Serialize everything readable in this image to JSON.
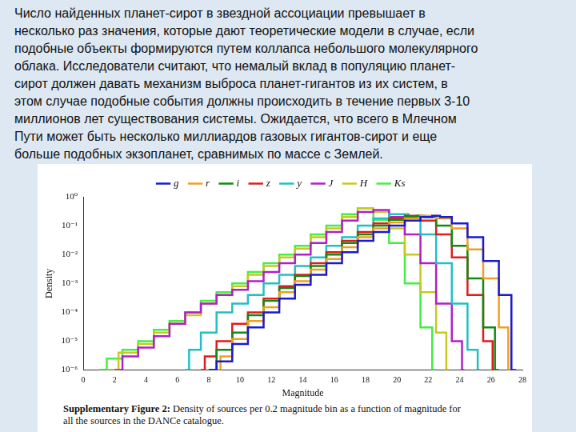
{
  "slide_text": [
    "Число найденных планет-сирот в звездной ассоциации превышает в",
    "несколько раз значения, которые дают теоретические модели в случае, если",
    "подобные объекты формируются путем коллапса небольшого молекулярного",
    "облака. Исследователи считают, что немалый вклад в популяцию планет-",
    "сирот должен давать механизм выброса планет-гигантов из их систем, в",
    "этом случае подобные события должны происходить в течение первых 3-10",
    "миллионов лет существования системы. Ожидается, что всего в Млечном",
    "Пути может быть несколько миллиардов газовых гигантов-сирот и еще",
    "больше подобных экзопланет, сравнимых по массе с Землей."
  ],
  "caption": {
    "label": "Supplementary Figure 2:",
    "lines": [
      "Density of sources per 0.2 magnitude bin as a function of magnitude for",
      "all the sources in the DANCe catalogue."
    ]
  },
  "chart_data": {
    "type": "line",
    "x_label": "Magnitude",
    "y_label": "Density",
    "log": "y",
    "line_style": "steps",
    "legend": "top",
    "grid": false,
    "xlim": [
      0,
      28
    ],
    "xticks": [
      0,
      2,
      4,
      6,
      8,
      10,
      12,
      14,
      16,
      18,
      20,
      22,
      24,
      26,
      28
    ],
    "ylim": [
      1e-06,
      1
    ],
    "yticks": [
      {
        "value": 1e-06,
        "label": "10⁻⁶"
      },
      {
        "value": 1e-05,
        "label": "10⁻⁵"
      },
      {
        "value": 0.0001,
        "label": "10⁻⁴"
      },
      {
        "value": 0.001,
        "label": "10⁻³"
      },
      {
        "value": 0.01,
        "label": "10⁻²"
      },
      {
        "value": 0.1,
        "label": "10⁻¹"
      },
      {
        "value": 1,
        "label": "10⁰"
      }
    ],
    "series": [
      {
        "name": "g",
        "color": "#1a1ad0",
        "x": [
          8,
          9,
          10,
          11,
          12,
          13,
          14,
          15,
          16,
          17,
          18,
          19,
          20,
          21,
          22,
          22.5,
          23,
          24,
          25,
          26,
          27,
          27.6
        ],
        "values": [
          1e-06,
          2e-06,
          8e-06,
          3e-05,
          0.0001,
          0.0003,
          0.0009,
          0.002,
          0.005,
          0.012,
          0.03,
          0.06,
          0.1,
          0.15,
          0.2,
          0.22,
          0.2,
          0.12,
          0.04,
          0.006,
          0.0004,
          1e-06
        ]
      },
      {
        "name": "r",
        "color": "#f0a020",
        "x": [
          8.5,
          9,
          10,
          11,
          12,
          13,
          14,
          15,
          16,
          17,
          18,
          19,
          20,
          21,
          22,
          23,
          24,
          25,
          26,
          27,
          27.2
        ],
        "values": [
          1e-06,
          3e-06,
          1.2e-05,
          5e-05,
          0.00015,
          0.0005,
          0.0012,
          0.003,
          0.007,
          0.018,
          0.04,
          0.08,
          0.13,
          0.18,
          0.22,
          0.18,
          0.08,
          0.015,
          0.0015,
          3e-05,
          1e-06
        ]
      },
      {
        "name": "i",
        "color": "#108a10",
        "x": [
          8,
          9,
          10,
          11,
          12,
          13,
          14,
          15,
          16,
          17,
          18,
          19,
          20,
          21,
          21.5,
          22,
          23,
          24,
          25,
          26,
          26.5
        ],
        "values": [
          1e-06,
          5e-06,
          2e-05,
          8e-05,
          0.00025,
          0.0007,
          0.0018,
          0.004,
          0.01,
          0.025,
          0.05,
          0.1,
          0.16,
          0.2,
          0.22,
          0.2,
          0.1,
          0.02,
          0.0015,
          3e-05,
          1e-06
        ]
      },
      {
        "name": "z",
        "color": "#e01c1c",
        "x": [
          7.5,
          8,
          9,
          10,
          11,
          12,
          13,
          14,
          15,
          16,
          17,
          18,
          19,
          20,
          21,
          22,
          23,
          24,
          25,
          26,
          26.2
        ],
        "values": [
          1e-06,
          3e-06,
          1e-05,
          4e-05,
          0.0001,
          0.0003,
          0.0008,
          0.002,
          0.005,
          0.012,
          0.03,
          0.06,
          0.12,
          0.18,
          0.22,
          0.15,
          0.05,
          0.008,
          0.0004,
          1e-05,
          1e-06
        ]
      },
      {
        "name": "y",
        "color": "#22c0c0",
        "x": [
          6.5,
          7,
          8,
          9,
          10,
          11,
          12,
          13,
          14,
          15,
          16,
          17,
          18,
          19,
          20,
          20.5,
          21,
          22,
          23,
          24,
          25,
          25.3
        ],
        "values": [
          1e-06,
          5e-06,
          2e-05,
          0.0001,
          0.0002,
          0.0004,
          0.001,
          0.002,
          0.004,
          0.008,
          0.02,
          0.04,
          0.1,
          0.18,
          0.25,
          0.25,
          0.2,
          0.05,
          0.005,
          0.0002,
          5e-06,
          1e-06
        ]
      },
      {
        "name": "J",
        "color": "#b020c8",
        "x": [
          2,
          3,
          4,
          5,
          6,
          7,
          8,
          9,
          10,
          11,
          12,
          13,
          14,
          15,
          16,
          17,
          18,
          19,
          20,
          21,
          22,
          23,
          24,
          24.3
        ],
        "values": [
          1e-06,
          3e-06,
          6e-06,
          1.5e-05,
          4e-05,
          0.0001,
          0.0002,
          0.0004,
          0.0006,
          0.0012,
          0.0025,
          0.005,
          0.01,
          0.025,
          0.06,
          0.15,
          0.3,
          0.35,
          0.2,
          0.05,
          0.005,
          0.0002,
          1e-05,
          1e-06
        ]
      },
      {
        "name": "H",
        "color": "#c8c820",
        "x": [
          1.5,
          3,
          4,
          5,
          6,
          7,
          8,
          9,
          10,
          11,
          12,
          13,
          14,
          15,
          16,
          17,
          18,
          19,
          20,
          21,
          22,
          23,
          23.3
        ],
        "values": [
          1e-06,
          4e-06,
          8e-06,
          2e-05,
          4e-05,
          8e-05,
          0.0002,
          0.0004,
          0.0008,
          0.002,
          0.004,
          0.008,
          0.016,
          0.04,
          0.08,
          0.2,
          0.4,
          0.3,
          0.08,
          0.01,
          0.0005,
          2e-05,
          1e-06
        ]
      },
      {
        "name": "Ks",
        "color": "#44ee44",
        "x": [
          1,
          2,
          3,
          4,
          5,
          6,
          7,
          8,
          9,
          10,
          11,
          12,
          13,
          14,
          15,
          16,
          17,
          18,
          19,
          20,
          21,
          22,
          22.5
        ],
        "values": [
          1e-06,
          2.5e-06,
          5e-06,
          1e-05,
          2.5e-05,
          5e-05,
          0.0001,
          0.00025,
          0.0005,
          0.001,
          0.0025,
          0.005,
          0.01,
          0.02,
          0.05,
          0.1,
          0.25,
          0.4,
          0.16,
          0.025,
          0.001,
          3e-05,
          1e-06
        ]
      }
    ]
  }
}
